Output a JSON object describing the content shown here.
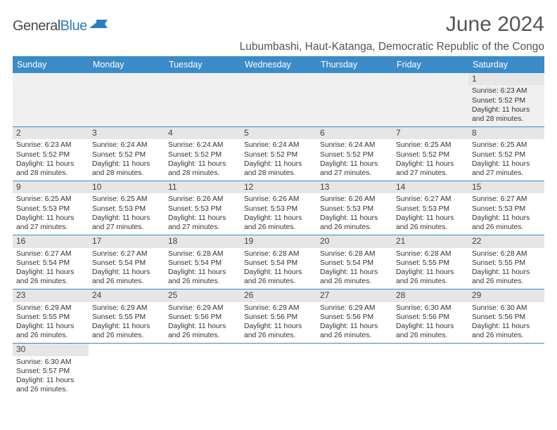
{
  "logo": {
    "part1": "General",
    "part2": "Blue",
    "color1": "#4a4a4a",
    "color2": "#2a7fbf"
  },
  "title": "June 2024",
  "subtitle": "Lubumbashi, Haut-Katanga, Democratic Republic of the Congo",
  "colors": {
    "header_bg": "#3b8bc9",
    "daynum_bg": "#e6e6e6",
    "border": "#3b8bc9"
  },
  "days_of_week": [
    "Sunday",
    "Monday",
    "Tuesday",
    "Wednesday",
    "Thursday",
    "Friday",
    "Saturday"
  ],
  "weeks": [
    [
      null,
      null,
      null,
      null,
      null,
      null,
      {
        "n": "1",
        "sr": "Sunrise: 6:23 AM",
        "ss": "Sunset: 5:52 PM",
        "d1": "Daylight: 11 hours",
        "d2": "and 28 minutes."
      }
    ],
    [
      {
        "n": "2",
        "sr": "Sunrise: 6:23 AM",
        "ss": "Sunset: 5:52 PM",
        "d1": "Daylight: 11 hours",
        "d2": "and 28 minutes."
      },
      {
        "n": "3",
        "sr": "Sunrise: 6:24 AM",
        "ss": "Sunset: 5:52 PM",
        "d1": "Daylight: 11 hours",
        "d2": "and 28 minutes."
      },
      {
        "n": "4",
        "sr": "Sunrise: 6:24 AM",
        "ss": "Sunset: 5:52 PM",
        "d1": "Daylight: 11 hours",
        "d2": "and 28 minutes."
      },
      {
        "n": "5",
        "sr": "Sunrise: 6:24 AM",
        "ss": "Sunset: 5:52 PM",
        "d1": "Daylight: 11 hours",
        "d2": "and 28 minutes."
      },
      {
        "n": "6",
        "sr": "Sunrise: 6:24 AM",
        "ss": "Sunset: 5:52 PM",
        "d1": "Daylight: 11 hours",
        "d2": "and 27 minutes."
      },
      {
        "n": "7",
        "sr": "Sunrise: 6:25 AM",
        "ss": "Sunset: 5:52 PM",
        "d1": "Daylight: 11 hours",
        "d2": "and 27 minutes."
      },
      {
        "n": "8",
        "sr": "Sunrise: 6:25 AM",
        "ss": "Sunset: 5:52 PM",
        "d1": "Daylight: 11 hours",
        "d2": "and 27 minutes."
      }
    ],
    [
      {
        "n": "9",
        "sr": "Sunrise: 6:25 AM",
        "ss": "Sunset: 5:53 PM",
        "d1": "Daylight: 11 hours",
        "d2": "and 27 minutes."
      },
      {
        "n": "10",
        "sr": "Sunrise: 6:25 AM",
        "ss": "Sunset: 5:53 PM",
        "d1": "Daylight: 11 hours",
        "d2": "and 27 minutes."
      },
      {
        "n": "11",
        "sr": "Sunrise: 6:26 AM",
        "ss": "Sunset: 5:53 PM",
        "d1": "Daylight: 11 hours",
        "d2": "and 27 minutes."
      },
      {
        "n": "12",
        "sr": "Sunrise: 6:26 AM",
        "ss": "Sunset: 5:53 PM",
        "d1": "Daylight: 11 hours",
        "d2": "and 26 minutes."
      },
      {
        "n": "13",
        "sr": "Sunrise: 6:26 AM",
        "ss": "Sunset: 5:53 PM",
        "d1": "Daylight: 11 hours",
        "d2": "and 26 minutes."
      },
      {
        "n": "14",
        "sr": "Sunrise: 6:27 AM",
        "ss": "Sunset: 5:53 PM",
        "d1": "Daylight: 11 hours",
        "d2": "and 26 minutes."
      },
      {
        "n": "15",
        "sr": "Sunrise: 6:27 AM",
        "ss": "Sunset: 5:53 PM",
        "d1": "Daylight: 11 hours",
        "d2": "and 26 minutes."
      }
    ],
    [
      {
        "n": "16",
        "sr": "Sunrise: 6:27 AM",
        "ss": "Sunset: 5:54 PM",
        "d1": "Daylight: 11 hours",
        "d2": "and 26 minutes."
      },
      {
        "n": "17",
        "sr": "Sunrise: 6:27 AM",
        "ss": "Sunset: 5:54 PM",
        "d1": "Daylight: 11 hours",
        "d2": "and 26 minutes."
      },
      {
        "n": "18",
        "sr": "Sunrise: 6:28 AM",
        "ss": "Sunset: 5:54 PM",
        "d1": "Daylight: 11 hours",
        "d2": "and 26 minutes."
      },
      {
        "n": "19",
        "sr": "Sunrise: 6:28 AM",
        "ss": "Sunset: 5:54 PM",
        "d1": "Daylight: 11 hours",
        "d2": "and 26 minutes."
      },
      {
        "n": "20",
        "sr": "Sunrise: 6:28 AM",
        "ss": "Sunset: 5:54 PM",
        "d1": "Daylight: 11 hours",
        "d2": "and 26 minutes."
      },
      {
        "n": "21",
        "sr": "Sunrise: 6:28 AM",
        "ss": "Sunset: 5:55 PM",
        "d1": "Daylight: 11 hours",
        "d2": "and 26 minutes."
      },
      {
        "n": "22",
        "sr": "Sunrise: 6:28 AM",
        "ss": "Sunset: 5:55 PM",
        "d1": "Daylight: 11 hours",
        "d2": "and 26 minutes."
      }
    ],
    [
      {
        "n": "23",
        "sr": "Sunrise: 6:29 AM",
        "ss": "Sunset: 5:55 PM",
        "d1": "Daylight: 11 hours",
        "d2": "and 26 minutes."
      },
      {
        "n": "24",
        "sr": "Sunrise: 6:29 AM",
        "ss": "Sunset: 5:55 PM",
        "d1": "Daylight: 11 hours",
        "d2": "and 26 minutes."
      },
      {
        "n": "25",
        "sr": "Sunrise: 6:29 AM",
        "ss": "Sunset: 5:56 PM",
        "d1": "Daylight: 11 hours",
        "d2": "and 26 minutes."
      },
      {
        "n": "26",
        "sr": "Sunrise: 6:29 AM",
        "ss": "Sunset: 5:56 PM",
        "d1": "Daylight: 11 hours",
        "d2": "and 26 minutes."
      },
      {
        "n": "27",
        "sr": "Sunrise: 6:29 AM",
        "ss": "Sunset: 5:56 PM",
        "d1": "Daylight: 11 hours",
        "d2": "and 26 minutes."
      },
      {
        "n": "28",
        "sr": "Sunrise: 6:30 AM",
        "ss": "Sunset: 5:56 PM",
        "d1": "Daylight: 11 hours",
        "d2": "and 26 minutes."
      },
      {
        "n": "29",
        "sr": "Sunrise: 6:30 AM",
        "ss": "Sunset: 5:56 PM",
        "d1": "Daylight: 11 hours",
        "d2": "and 26 minutes."
      }
    ],
    [
      {
        "n": "30",
        "sr": "Sunrise: 6:30 AM",
        "ss": "Sunset: 5:57 PM",
        "d1": "Daylight: 11 hours",
        "d2": "and 26 minutes."
      },
      null,
      null,
      null,
      null,
      null,
      null
    ]
  ]
}
